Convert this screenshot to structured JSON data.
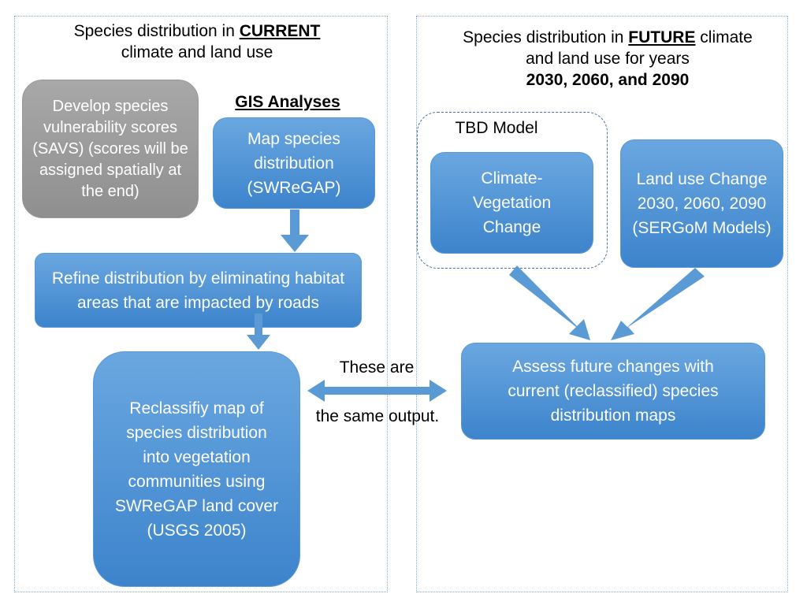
{
  "left": {
    "title_prefix": "Species distribution in ",
    "title_emph": "CURRENT",
    "title_suffix": "climate and land use",
    "gis_label": "GIS Analyses",
    "savs_box": "Develop species vulnerability scores (SAVS) (scores will be assigned spatially at the end)",
    "map_box": "Map species distribution (SWReGAP)",
    "refine_box": "Refine distribution by eliminating habitat areas that are impacted by roads",
    "reclass_box": "Reclassifiy map of species distribution into vegetation communities using SWReGAP land cover (USGS 2005)"
  },
  "middle": {
    "line1": "These are",
    "line2": "the same output."
  },
  "right": {
    "title_prefix": "Species distribution in ",
    "title_emph": "FUTURE",
    "title_suffix": " climate",
    "title_line2": "and land use for years",
    "title_line3": "2030, 2060, and 2090",
    "tbd_label": "TBD Model",
    "climate_box": "Climate-Vegetation Change",
    "landuse_box": "Land use Change 2030, 2060, 2090 (SERGoM Models)",
    "assess_box": "Assess future changes with current (reclassified) species distribution maps"
  },
  "colors": {
    "box_blue": "#4f93d6",
    "box_gray": "#999999",
    "arrow_blue": "#5b9bd5",
    "panel_border": "#7fa7cf",
    "dashed_border": "#4a6fa0"
  }
}
